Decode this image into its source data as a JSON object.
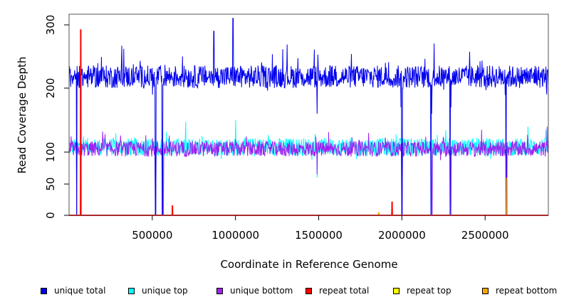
{
  "chart_data": {
    "type": "line",
    "title": "",
    "xlabel": "Coordinate in Reference Genome",
    "ylabel": "Read Coverage Depth",
    "xlim": [
      0,
      2880000
    ],
    "ylim": [
      0,
      315
    ],
    "x_ticks": [
      500000,
      1000000,
      1500000,
      2000000,
      2500000
    ],
    "x_tick_labels": [
      "500000",
      "1000000",
      "1500000",
      "2000000",
      "2500000"
    ],
    "y_ticks": [
      0,
      50,
      100,
      200,
      300
    ],
    "y_tick_labels": [
      "0",
      "50",
      "100",
      "200",
      "300"
    ],
    "grid": false,
    "legend_position": "bottom",
    "series": [
      {
        "name": "unique total",
        "color": "#0000ee",
        "baseline": 218,
        "amplitude": 18,
        "x": [
          0,
          30000,
          45000,
          62000,
          70000,
          80000,
          100000,
          200000,
          300000,
          400000,
          515000,
          520000,
          525000,
          560000,
          565000,
          570000,
          600000,
          700000,
          800000,
          870000,
          900000,
          985000,
          1000000,
          1100000,
          1200000,
          1300000,
          1400000,
          1490000,
          1500000,
          1600000,
          1700000,
          1800000,
          1900000,
          1950000,
          1995000,
          2000000,
          2005000,
          2100000,
          2175000,
          2180000,
          2185000,
          2230000,
          2290000,
          2295000,
          2300000,
          2400000,
          2500000,
          2600000,
          2625000,
          2630000,
          2700000,
          2800000,
          2870000
        ],
        "y": [
          200,
          220,
          0,
          235,
          0,
          230,
          215,
          225,
          210,
          232,
          205,
          0,
          215,
          0,
          205,
          215,
          220,
          230,
          210,
          290,
          220,
          310,
          225,
          210,
          230,
          220,
          205,
          160,
          220,
          235,
          210,
          225,
          240,
          215,
          170,
          0,
          200,
          220,
          0,
          160,
          215,
          205,
          0,
          170,
          210,
          230,
          215,
          225,
          0,
          220,
          210,
          235,
          190
        ]
      },
      {
        "name": "unique top",
        "color": "#00ffff",
        "baseline": 108,
        "amplitude": 14,
        "x": [
          0,
          45000,
          70000,
          100000,
          300000,
          520000,
          565000,
          800000,
          1000000,
          1200000,
          1490000,
          1800000,
          2000000,
          2180000,
          2295000,
          2500000,
          2630000,
          2870000
        ],
        "y": [
          130,
          0,
          0,
          110,
          105,
          0,
          0,
          125,
          150,
          110,
          60,
          115,
          0,
          0,
          0,
          110,
          0,
          120
        ]
      },
      {
        "name": "unique bottom",
        "color": "#a020f0",
        "baseline": 105,
        "amplitude": 12,
        "x": [
          0,
          45000,
          70000,
          100000,
          300000,
          520000,
          565000,
          800000,
          1000000,
          1200000,
          1490000,
          1800000,
          2000000,
          2180000,
          2295000,
          2500000,
          2630000,
          2870000
        ],
        "y": [
          95,
          0,
          0,
          110,
          100,
          0,
          0,
          115,
          120,
          105,
          65,
          130,
          0,
          0,
          0,
          100,
          0,
          110
        ]
      },
      {
        "name": "repeat total",
        "color": "#ff0000",
        "x": [
          0,
          69000,
          70000,
          71000,
          620000,
          621000,
          622000,
          1940000,
          1941000,
          1942000,
          2880000
        ],
        "y": [
          0,
          0,
          293,
          0,
          0,
          16,
          0,
          0,
          22,
          0,
          0
        ]
      },
      {
        "name": "repeat top",
        "color": "#ffff00",
        "x": [
          0,
          2880000
        ],
        "y": [
          0,
          0
        ]
      },
      {
        "name": "repeat bottom",
        "color": "#ffa500",
        "x": [
          0,
          69000,
          70000,
          71000,
          620000,
          621000,
          622000,
          1860000,
          1861000,
          1862000,
          1940000,
          1941000,
          1942000,
          2630000,
          2631000,
          2632000,
          2880000
        ],
        "y": [
          0,
          0,
          25,
          0,
          0,
          10,
          0,
          0,
          5,
          0,
          0,
          12,
          0,
          0,
          60,
          0,
          0
        ]
      }
    ]
  },
  "legend": {
    "items": [
      {
        "label": "unique total",
        "color": "#0000ee"
      },
      {
        "label": "unique top",
        "color": "#00ffff"
      },
      {
        "label": "unique bottom",
        "color": "#a020f0"
      },
      {
        "label": "repeat total",
        "color": "#ff0000"
      },
      {
        "label": "repeat top",
        "color": "#ffff00"
      },
      {
        "label": "repeat bottom",
        "color": "#ffa500"
      }
    ]
  }
}
